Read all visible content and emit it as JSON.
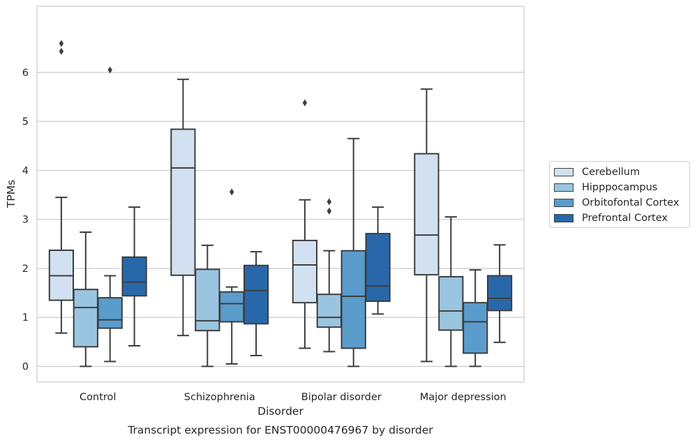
{
  "chart_data": {
    "type": "boxplot",
    "title": "Transcript expression for ENST00000476967 by disorder",
    "xlabel": "Disorder",
    "ylabel": "TPMs",
    "ylim": [
      -0.32,
      7.35
    ],
    "yticks": [
      "0",
      "1",
      "2",
      "3",
      "4",
      "5",
      "6"
    ],
    "grid": "horizontal",
    "legend_position": "right",
    "categories": [
      "Control",
      "Schizophrenia",
      "Bipolar disorder",
      "Major depression"
    ],
    "series": [
      {
        "name": "Cerebellum",
        "color": "#d1e1f1",
        "boxes": [
          {
            "whislo": 0.68,
            "q1": 1.35,
            "med": 1.85,
            "q3": 2.37,
            "whishi": 3.45,
            "fliers": [
              6.43,
              6.59
            ]
          },
          {
            "whislo": 0.63,
            "q1": 1.86,
            "med": 4.05,
            "q3": 4.84,
            "whishi": 5.86,
            "fliers": []
          },
          {
            "whislo": 0.37,
            "q1": 1.3,
            "med": 2.07,
            "q3": 2.57,
            "whishi": 3.4,
            "fliers": [
              5.38
            ]
          },
          {
            "whislo": 0.1,
            "q1": 1.87,
            "med": 2.68,
            "q3": 4.34,
            "whishi": 5.66,
            "fliers": []
          }
        ]
      },
      {
        "name": "Hipppocampus",
        "color": "#9ac5e0",
        "boxes": [
          {
            "whislo": 0.0,
            "q1": 0.4,
            "med": 1.2,
            "q3": 1.57,
            "whishi": 2.74,
            "fliers": []
          },
          {
            "whislo": 0.0,
            "q1": 0.73,
            "med": 0.93,
            "q3": 1.98,
            "whishi": 2.47,
            "fliers": []
          },
          {
            "whislo": 0.3,
            "q1": 0.8,
            "med": 1.0,
            "q3": 1.47,
            "whishi": 2.36,
            "fliers": [
              3.17,
              3.36
            ]
          },
          {
            "whislo": 0.0,
            "q1": 0.74,
            "med": 1.13,
            "q3": 1.83,
            "whishi": 3.05,
            "fliers": []
          }
        ]
      },
      {
        "name": "Orbitofontal Cortex",
        "color": "#5a9ccc",
        "boxes": [
          {
            "whislo": 0.1,
            "q1": 0.78,
            "med": 0.95,
            "q3": 1.4,
            "whishi": 1.85,
            "fliers": [
              6.05
            ]
          },
          {
            "whislo": 0.05,
            "q1": 0.91,
            "med": 1.28,
            "q3": 1.52,
            "whishi": 1.62,
            "fliers": [
              3.56
            ]
          },
          {
            "whislo": 0.0,
            "q1": 0.37,
            "med": 1.43,
            "q3": 2.36,
            "whishi": 4.65,
            "fliers": []
          },
          {
            "whislo": 0.0,
            "q1": 0.27,
            "med": 0.91,
            "q3": 1.3,
            "whishi": 1.97,
            "fliers": []
          }
        ]
      },
      {
        "name": "Prefrontal Cortex",
        "color": "#2868aa",
        "boxes": [
          {
            "whislo": 0.42,
            "q1": 1.44,
            "med": 1.72,
            "q3": 2.23,
            "whishi": 3.25,
            "fliers": []
          },
          {
            "whislo": 0.22,
            "q1": 0.87,
            "med": 1.55,
            "q3": 2.06,
            "whishi": 2.34,
            "fliers": []
          },
          {
            "whislo": 1.07,
            "q1": 1.33,
            "med": 1.64,
            "q3": 2.71,
            "whishi": 3.25,
            "fliers": []
          },
          {
            "whislo": 0.49,
            "q1": 1.14,
            "med": 1.39,
            "q3": 1.85,
            "whishi": 2.48,
            "fliers": []
          }
        ]
      }
    ]
  }
}
